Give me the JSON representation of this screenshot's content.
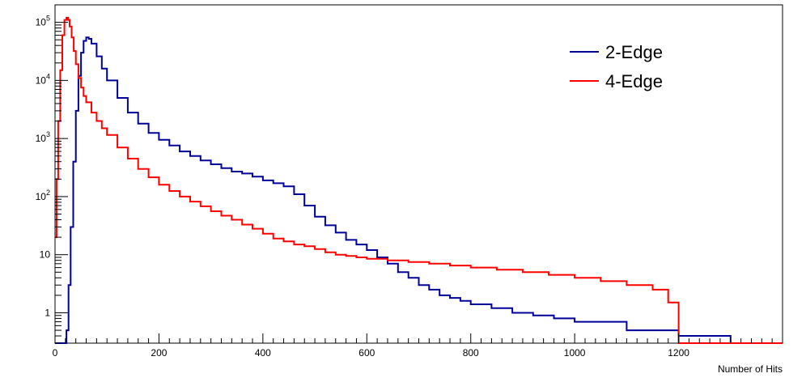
{
  "chart_data": {
    "type": "line",
    "title": "",
    "xlabel": "Number of Hits",
    "ylabel": "",
    "xlim": [
      0,
      1400
    ],
    "ylim": [
      0.3,
      200000
    ],
    "yscale": "log",
    "grid": false,
    "legend_position": "top-right",
    "x_ticks": [
      0,
      200,
      400,
      600,
      800,
      1000,
      1200
    ],
    "x_tick_labels": [
      "0",
      "200",
      "400",
      "600",
      "800",
      "1000",
      "1200"
    ],
    "y_ticks": [
      1,
      10,
      100,
      1000,
      10000,
      100000
    ],
    "y_tick_labels": [
      {
        "base": "1",
        "exp": ""
      },
      {
        "base": "10",
        "exp": ""
      },
      {
        "base": "10",
        "exp": "2"
      },
      {
        "base": "10",
        "exp": "3"
      },
      {
        "base": "10",
        "exp": "4"
      },
      {
        "base": "10",
        "exp": "5"
      }
    ],
    "series": [
      {
        "name": "2-Edge",
        "color": "#000099",
        "x": [
          0,
          10,
          18,
          22,
          26,
          30,
          35,
          40,
          45,
          50,
          55,
          60,
          65,
          70,
          80,
          90,
          100,
          120,
          140,
          160,
          180,
          200,
          220,
          240,
          260,
          280,
          300,
          320,
          340,
          360,
          380,
          400,
          420,
          440,
          460,
          480,
          500,
          520,
          540,
          560,
          580,
          600,
          620,
          640,
          660,
          680,
          700,
          720,
          740,
          760,
          780,
          800,
          840,
          880,
          920,
          960,
          1000,
          1100,
          1200,
          1300,
          1400
        ],
        "y": [
          0,
          0,
          0,
          0.5,
          3,
          30,
          400,
          3000,
          12000,
          30000,
          48000,
          55000,
          52000,
          43000,
          26000,
          16000,
          10000,
          5000,
          2800,
          1800,
          1250,
          950,
          760,
          600,
          500,
          420,
          360,
          310,
          270,
          250,
          220,
          190,
          170,
          150,
          110,
          70,
          45,
          32,
          24,
          18,
          15,
          12,
          9,
          7,
          5,
          4,
          3,
          2.5,
          2,
          1.8,
          1.6,
          1.4,
          1.2,
          1,
          0.9,
          0.8,
          0.7,
          0.5,
          0.4,
          0.3,
          0.3
        ]
      },
      {
        "name": "4-Edge",
        "color": "#ff0000",
        "x": [
          0,
          3,
          6,
          10,
          14,
          18,
          22,
          25,
          28,
          32,
          36,
          40,
          45,
          50,
          55,
          60,
          70,
          80,
          90,
          100,
          120,
          140,
          160,
          180,
          200,
          220,
          240,
          260,
          280,
          300,
          320,
          340,
          360,
          380,
          400,
          420,
          440,
          460,
          480,
          500,
          520,
          540,
          560,
          580,
          600,
          640,
          680,
          720,
          760,
          800,
          850,
          900,
          950,
          1000,
          1050,
          1100,
          1150,
          1180,
          1200,
          1300,
          1400
        ],
        "y": [
          20,
          200,
          2000,
          15000,
          60000,
          110000,
          120000,
          110000,
          85000,
          55000,
          32000,
          19000,
          11000,
          7500,
          5400,
          4200,
          2800,
          2000,
          1500,
          1150,
          700,
          450,
          300,
          215,
          160,
          125,
          100,
          82,
          68,
          56,
          47,
          40,
          33,
          28,
          23,
          19,
          17,
          15,
          14,
          12.5,
          11,
          10,
          9.5,
          9,
          8.5,
          8,
          7.5,
          7,
          6.5,
          6,
          5.5,
          5,
          4.5,
          4,
          3.5,
          3,
          2.5,
          1.5,
          0.3,
          0.3,
          0.3
        ]
      }
    ]
  }
}
